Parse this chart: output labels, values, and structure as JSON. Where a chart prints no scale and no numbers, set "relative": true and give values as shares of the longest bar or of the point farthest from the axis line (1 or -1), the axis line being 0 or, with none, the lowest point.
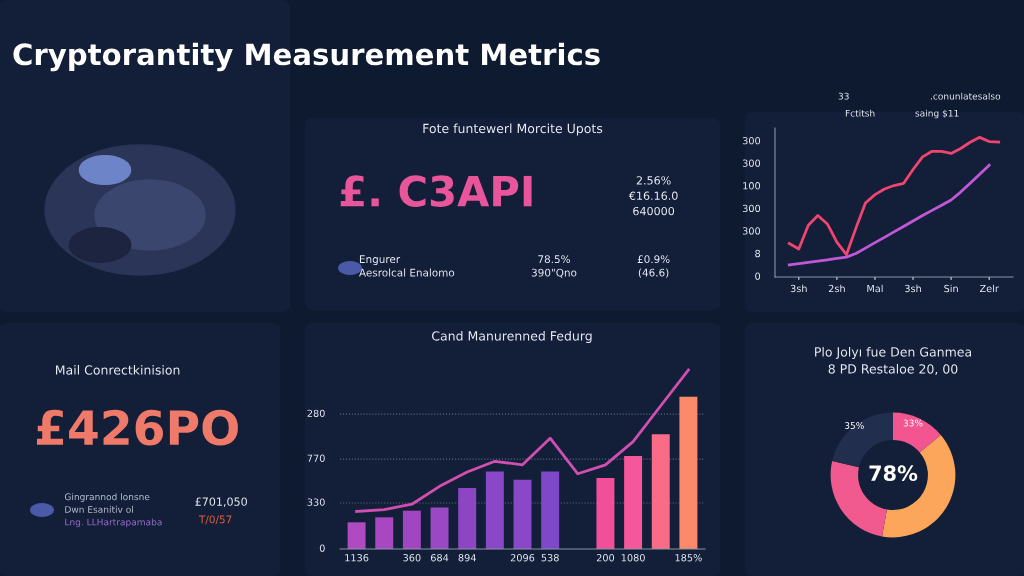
{
  "chart_data": [
    {
      "type": "other",
      "title": "Cryptorantity Measurement Metrics"
    },
    {
      "type": "other",
      "title": "Fote funtewerl Morcite Upots",
      "annotations": [
        "£. C3API",
        "2.56%",
        "€16.16.0",
        "640000",
        "Engurer",
        "Aesrolcal Enalomo",
        "78.5%",
        "390\"Qno",
        "£0.9%",
        "(46.6)"
      ]
    },
    {
      "type": "line",
      "relative": true,
      "annotations": [
        "33",
        ".conunlatesalso",
        "Fctitsh",
        "saing $11",
        "0",
        "8",
        "300",
        "300",
        "100",
        "300",
        "300"
      ],
      "categories": [
        null,
        "3sh",
        null,
        null,
        null,
        "2sh",
        null,
        null,
        null,
        "Mal",
        null,
        null,
        null,
        "3sh",
        null,
        null,
        null,
        "Sin",
        null,
        null,
        null,
        "Zelr",
        null
      ],
      "series": [
        {
          "color": "#f0456e",
          "values": [
            0.24,
            0.2,
            0.37,
            0.44,
            0.38,
            0.25,
            0.16,
            0.35,
            0.53,
            0.59,
            0.63,
            0.655,
            0.67,
            0.77,
            0.86,
            0.9,
            0.9,
            0.885,
            0.92,
            0.965,
            1.0,
            0.97,
            0.966
          ]
        },
        {
          "color": "#c058d8",
          "values": [
            0.086,
            0.096,
            0.105,
            0.114,
            0.123,
            0.133,
            0.142,
            0.168,
            0.207,
            0.246,
            0.284,
            0.323,
            0.362,
            0.401,
            0.44,
            0.477,
            0.514,
            0.551,
            0.608,
            0.672,
            0.736,
            0.8,
            null
          ]
        }
      ]
    },
    {
      "type": "other",
      "title": "Mail Conrectkinision",
      "annotations": [
        "£426PO",
        "Gingrannod lonsne",
        "Dwn Esanitiv ol",
        "Lng. LLHartrapamaba",
        "£701,050",
        "T/0/57"
      ]
    },
    {
      "type": "bar",
      "title": "Cand Manurenned Fedurg",
      "relative": true,
      "grid": "y",
      "annotations": [
        "0",
        "330",
        "770",
        "280"
      ],
      "categories": [
        "1136",
        null,
        "360",
        "684",
        "894",
        null,
        "2096",
        "538",
        null,
        "200",
        "1080",
        null,
        "185%"
      ],
      "series": [
        {
          "type": "bar",
          "values": [
            0.149,
            0.177,
            0.214,
            0.232,
            0.34,
            0.433,
            0.387,
            0.433,
            null,
            0.396,
            0.52,
            0.641,
            0.851
          ],
          "colors": [
            "#b04ac0",
            "#a848c0",
            "#a046c0",
            "#9a48c4",
            "#8c46c4",
            "#8a48c8",
            "#8848c8",
            "#7e48c8",
            null,
            "#f0509a",
            "#f4589a",
            "#f86c88",
            "#fa8a6a"
          ]
        },
        {
          "type": "line",
          "color": "#d04fb0",
          "values": [
            0.21,
            0.22,
            0.25,
            0.35,
            0.43,
            0.49,
            0.47,
            0.619,
            0.42,
            0.47,
            0.6,
            0.8,
            1.0
          ]
        }
      ]
    },
    {
      "type": "donut",
      "title": "Plo Jolyı fue Den Ganmea",
      "subtitle": "8 PD Restaloe 20, 00",
      "annotations": [
        "78%",
        "33%",
        "35%"
      ],
      "categories": [
        null,
        null,
        null,
        null
      ],
      "values": [
        13.9,
        38.9,
        25.8,
        21.4
      ],
      "colors": [
        "#f2558f",
        "#fba65a",
        "#f05a8e",
        "#222e4e"
      ]
    }
  ]
}
